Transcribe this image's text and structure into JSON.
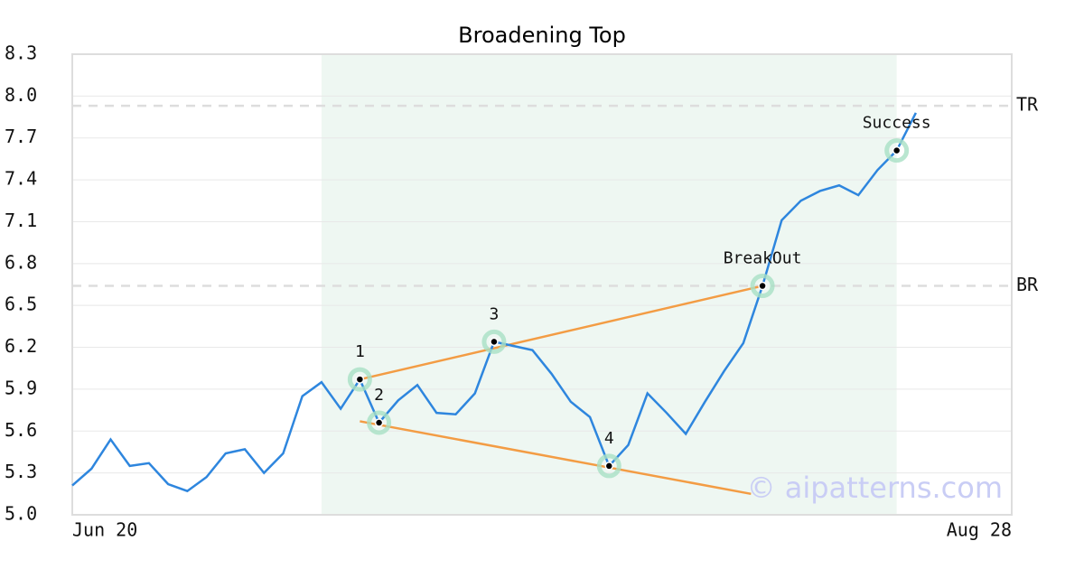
{
  "chart_data": {
    "type": "line",
    "title": "Broadening Top",
    "x": [
      0,
      1,
      2,
      3,
      4,
      5,
      6,
      7,
      8,
      9,
      10,
      11,
      12,
      13,
      14,
      15,
      16,
      17,
      18,
      19,
      20,
      21,
      22,
      23,
      24,
      25,
      26,
      27,
      28,
      29,
      30,
      31,
      32,
      33,
      34,
      35,
      36,
      37,
      38,
      39,
      40,
      41,
      42,
      43,
      44
    ],
    "values": [
      5.21,
      5.33,
      5.54,
      5.35,
      5.37,
      5.22,
      5.17,
      5.27,
      5.44,
      5.47,
      5.3,
      5.44,
      5.85,
      5.95,
      5.76,
      5.97,
      5.66,
      5.82,
      5.93,
      5.73,
      5.72,
      5.87,
      6.24,
      6.21,
      6.18,
      6.01,
      5.81,
      5.7,
      5.35,
      5.5,
      5.87,
      5.73,
      5.58,
      5.81,
      6.03,
      6.23,
      6.64,
      7.11,
      7.25,
      7.32,
      7.36,
      7.29,
      7.47,
      7.61,
      7.88
    ],
    "color": "#2e86de",
    "xlim": [
      0,
      49
    ],
    "xticks": [
      {
        "value": 0,
        "label": "Jun 20"
      },
      {
        "value": 49,
        "label": "Aug 28"
      }
    ],
    "ylim": [
      5.0,
      8.3
    ],
    "yticks": [
      {
        "value": 5,
        "label": "5.0"
      },
      5.3,
      5.6,
      5.9,
      6.2,
      6.5,
      6.8,
      7.1,
      7.4,
      7.7,
      {
        "value": 8,
        "label": "8.0"
      },
      8.3
    ],
    "grid": true,
    "shade": {
      "x": [
        13,
        43
      ],
      "color": "#eef7f2"
    },
    "hlines": [
      {
        "value": 7.93,
        "label": "TR"
      },
      {
        "value": 6.64,
        "label": "BR"
      }
    ],
    "trendlines": {
      "color": "#f39c44",
      "lines": [
        {
          "x": [
            15,
            36
          ],
          "values": [
            5.97,
            6.64
          ]
        },
        {
          "x": [
            15,
            35.4
          ],
          "values": [
            5.67,
            5.15
          ]
        }
      ]
    },
    "points": [
      {
        "x": 15,
        "value": 5.97,
        "label": "1"
      },
      {
        "x": 16,
        "value": 5.66,
        "label": "2"
      },
      {
        "x": 22,
        "value": 6.24,
        "label": "3"
      },
      {
        "x": 28,
        "value": 5.35,
        "label": "4"
      },
      {
        "x": 36,
        "value": 6.64,
        "label": "BreakOut"
      },
      {
        "x": 43,
        "value": 7.61,
        "label": "Success"
      }
    ],
    "watermark": "© aipatterns.com"
  }
}
